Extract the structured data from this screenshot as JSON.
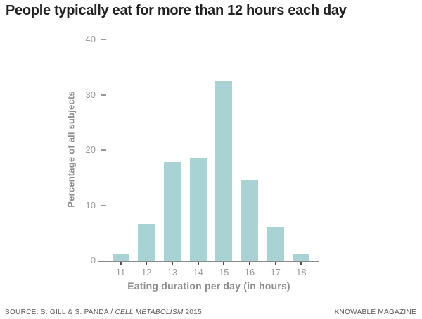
{
  "chart_data": {
    "type": "bar",
    "title": "People typically eat for more than 12 hours each day",
    "categories": [
      "11",
      "12",
      "13",
      "14",
      "15",
      "16",
      "17",
      "18"
    ],
    "values": [
      1.3,
      6.6,
      17.8,
      18.5,
      32.5,
      14.7,
      6,
      1.3
    ],
    "xlabel": "Eating duration per day (in hours)",
    "ylabel": "Percentage of all subjects",
    "ylim": [
      0,
      40
    ],
    "yticks": [
      0,
      10,
      20,
      30,
      40
    ],
    "grid": false,
    "legend_position": "none",
    "bar_color": "#a9d2d4",
    "axis_line_color": "#8a8a8a",
    "x_tick_mark_color": "#4f4f4f",
    "y_dash_color": "#999999",
    "tick_label_color": "#999999",
    "axis_title_color": "#8e8e8e",
    "title_color": "#222222"
  },
  "footer": {
    "source_prefix": "SOURCE: S. GILL & S. PANDA / ",
    "source_italic": "CELL METABOLISM",
    "source_suffix": " 2015",
    "brand": "KNOWABLE MAGAZINE"
  }
}
